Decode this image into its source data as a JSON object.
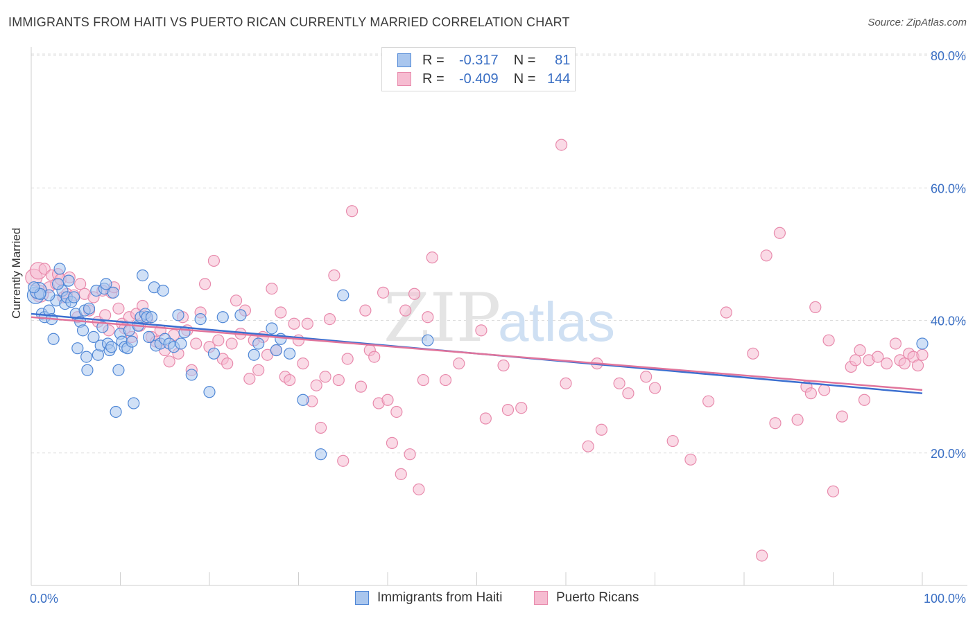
{
  "title": "IMMIGRANTS FROM HAITI VS PUERTO RICAN CURRENTLY MARRIED CORRELATION CHART",
  "source": "Source: ZipAtlas.com",
  "legend": {
    "rows": [
      {
        "r_label": "R =",
        "r_value": "-0.317",
        "n_label": "N =",
        "n_value": "81"
      },
      {
        "r_label": "R =",
        "r_value": "-0.409",
        "n_label": "N =",
        "n_value": "144"
      }
    ]
  },
  "bottom_legend": {
    "haiti": "Immigrants from Haiti",
    "pr": "Puerto Ricans"
  },
  "colors": {
    "haiti_fill": "#a9c6ee",
    "haiti_stroke": "#4f87d6",
    "haiti_line": "#3b6fd0",
    "pr_fill": "#f6bcd1",
    "pr_stroke": "#e88aac",
    "pr_line": "#e0749b",
    "tick_label": "#3a6fc4",
    "grid": "#dddddd"
  },
  "chart_data": {
    "type": "scatter",
    "title": "IMMIGRANTS FROM HAITI VS PUERTO RICAN CURRENTLY MARRIED CORRELATION CHART",
    "xlabel": "",
    "ylabel": "Currently Married",
    "xlim": [
      0,
      100
    ],
    "ylim": [
      0,
      80
    ],
    "x_tick_labels": [
      "0.0%",
      "100.0%"
    ],
    "y_tick_labels": [
      "20.0%",
      "40.0%",
      "60.0%",
      "80.0%"
    ],
    "y_ticks": [
      20,
      40,
      60,
      80
    ],
    "grid": true,
    "watermark": "ZIPatlas",
    "series": [
      {
        "name": "Immigrants from Haiti",
        "trend": [
          [
            0,
            41.0
          ],
          [
            100,
            29.0
          ]
        ],
        "points": [
          [
            0.5,
            43.8
          ],
          [
            0.8,
            44.5
          ],
          [
            1.2,
            41.0
          ],
          [
            1.5,
            40.5
          ],
          [
            2.0,
            41.5
          ],
          [
            2.3,
            40.2
          ],
          [
            2.5,
            37.2
          ],
          [
            2.8,
            43.0
          ],
          [
            3.2,
            47.8
          ],
          [
            3.5,
            44.5
          ],
          [
            3.8,
            42.5
          ],
          [
            4.0,
            43.5
          ],
          [
            4.2,
            46.0
          ],
          [
            4.5,
            42.8
          ],
          [
            4.8,
            43.5
          ],
          [
            5.0,
            41.0
          ],
          [
            5.2,
            35.8
          ],
          [
            5.5,
            39.8
          ],
          [
            5.8,
            38.5
          ],
          [
            6.0,
            41.5
          ],
          [
            6.2,
            34.5
          ],
          [
            6.3,
            32.5
          ],
          [
            6.5,
            41.8
          ],
          [
            7.0,
            37.5
          ],
          [
            7.3,
            44.5
          ],
          [
            7.5,
            34.8
          ],
          [
            7.8,
            36.2
          ],
          [
            8.0,
            39.0
          ],
          [
            8.2,
            44.8
          ],
          [
            8.4,
            45.5
          ],
          [
            8.6,
            36.5
          ],
          [
            8.8,
            35.5
          ],
          [
            9.0,
            36.0
          ],
          [
            9.2,
            44.2
          ],
          [
            9.5,
            26.2
          ],
          [
            9.8,
            32.5
          ],
          [
            10.0,
            38.0
          ],
          [
            10.2,
            36.8
          ],
          [
            10.5,
            36.0
          ],
          [
            10.8,
            35.8
          ],
          [
            11.0,
            38.5
          ],
          [
            11.3,
            36.8
          ],
          [
            11.5,
            27.5
          ],
          [
            12.0,
            39.2
          ],
          [
            12.3,
            40.5
          ],
          [
            12.5,
            46.8
          ],
          [
            12.8,
            41.0
          ],
          [
            13.0,
            40.5
          ],
          [
            13.2,
            37.5
          ],
          [
            13.5,
            40.5
          ],
          [
            13.8,
            45.0
          ],
          [
            14.0,
            36.2
          ],
          [
            14.5,
            36.5
          ],
          [
            14.8,
            44.5
          ],
          [
            15.0,
            37.2
          ],
          [
            15.5,
            36.5
          ],
          [
            16.0,
            36.0
          ],
          [
            16.5,
            40.8
          ],
          [
            16.8,
            36.5
          ],
          [
            17.2,
            38.2
          ],
          [
            18.0,
            31.8
          ],
          [
            19.0,
            40.2
          ],
          [
            20.0,
            29.2
          ],
          [
            20.5,
            35.0
          ],
          [
            21.5,
            40.5
          ],
          [
            23.5,
            40.8
          ],
          [
            25.0,
            34.8
          ],
          [
            25.5,
            36.5
          ],
          [
            27.0,
            38.8
          ],
          [
            27.5,
            35.5
          ],
          [
            28.0,
            37.2
          ],
          [
            29.0,
            35.0
          ],
          [
            30.5,
            28.0
          ],
          [
            32.5,
            19.8
          ],
          [
            35.0,
            43.8
          ],
          [
            44.5,
            37.0
          ],
          [
            100.0,
            36.5
          ],
          [
            3.0,
            45.5
          ],
          [
            2.0,
            43.8
          ],
          [
            1.0,
            44.0
          ],
          [
            0.3,
            45.0
          ]
        ]
      },
      {
        "name": "Puerto Ricans",
        "trend": [
          [
            0,
            40.5
          ],
          [
            100,
            29.5
          ]
        ],
        "points": [
          [
            0.3,
            46.5
          ],
          [
            0.8,
            47.5
          ],
          [
            1.0,
            44.0
          ],
          [
            1.5,
            47.8
          ],
          [
            2.0,
            45.0
          ],
          [
            2.3,
            46.8
          ],
          [
            2.8,
            45.5
          ],
          [
            3.0,
            47.0
          ],
          [
            3.3,
            46.2
          ],
          [
            3.6,
            43.5
          ],
          [
            4.0,
            44.0
          ],
          [
            4.3,
            46.5
          ],
          [
            4.8,
            43.8
          ],
          [
            5.2,
            40.5
          ],
          [
            5.5,
            45.5
          ],
          [
            6.0,
            44.0
          ],
          [
            6.5,
            41.5
          ],
          [
            7.0,
            43.5
          ],
          [
            7.5,
            39.8
          ],
          [
            8.0,
            44.5
          ],
          [
            8.3,
            40.8
          ],
          [
            8.7,
            38.5
          ],
          [
            9.0,
            44.2
          ],
          [
            9.3,
            45.0
          ],
          [
            9.8,
            41.8
          ],
          [
            10.2,
            39.5
          ],
          [
            10.5,
            38.8
          ],
          [
            11.0,
            40.5
          ],
          [
            11.3,
            37.5
          ],
          [
            11.8,
            41.0
          ],
          [
            12.2,
            39.2
          ],
          [
            12.5,
            42.2
          ],
          [
            13.0,
            40.2
          ],
          [
            13.5,
            37.5
          ],
          [
            14.0,
            36.8
          ],
          [
            14.5,
            38.5
          ],
          [
            15.0,
            35.5
          ],
          [
            15.5,
            33.8
          ],
          [
            16.0,
            37.8
          ],
          [
            16.5,
            35.0
          ],
          [
            17.0,
            40.5
          ],
          [
            17.5,
            38.5
          ],
          [
            18.0,
            32.5
          ],
          [
            18.5,
            36.5
          ],
          [
            19.0,
            41.2
          ],
          [
            19.5,
            45.5
          ],
          [
            20.0,
            36.0
          ],
          [
            20.5,
            49.0
          ],
          [
            21.0,
            37.0
          ],
          [
            21.5,
            34.2
          ],
          [
            22.0,
            33.5
          ],
          [
            22.5,
            36.5
          ],
          [
            23.0,
            43.0
          ],
          [
            23.5,
            38.0
          ],
          [
            24.0,
            41.5
          ],
          [
            24.5,
            31.2
          ],
          [
            25.0,
            37.0
          ],
          [
            25.5,
            32.5
          ],
          [
            26.0,
            37.5
          ],
          [
            26.5,
            34.8
          ],
          [
            27.0,
            44.8
          ],
          [
            27.5,
            35.5
          ],
          [
            28.0,
            41.2
          ],
          [
            28.5,
            31.5
          ],
          [
            29.0,
            31.0
          ],
          [
            29.5,
            39.5
          ],
          [
            30.0,
            37.0
          ],
          [
            30.5,
            33.5
          ],
          [
            31.0,
            39.5
          ],
          [
            31.5,
            27.8
          ],
          [
            32.0,
            30.2
          ],
          [
            32.5,
            23.8
          ],
          [
            33.0,
            31.5
          ],
          [
            33.5,
            40.2
          ],
          [
            34.0,
            46.8
          ],
          [
            34.5,
            31.0
          ],
          [
            35.0,
            18.8
          ],
          [
            35.5,
            34.2
          ],
          [
            36.0,
            56.5
          ],
          [
            37.0,
            30.0
          ],
          [
            37.5,
            41.5
          ],
          [
            38.0,
            35.5
          ],
          [
            38.5,
            34.5
          ],
          [
            39.0,
            27.5
          ],
          [
            39.5,
            44.2
          ],
          [
            40.0,
            28.0
          ],
          [
            40.5,
            21.5
          ],
          [
            41.0,
            26.2
          ],
          [
            41.5,
            16.8
          ],
          [
            42.0,
            41.5
          ],
          [
            42.5,
            19.8
          ],
          [
            43.0,
            44.0
          ],
          [
            43.5,
            14.5
          ],
          [
            44.0,
            31.0
          ],
          [
            44.5,
            40.5
          ],
          [
            45.0,
            49.5
          ],
          [
            46.5,
            31.0
          ],
          [
            48.0,
            33.5
          ],
          [
            50.5,
            38.5
          ],
          [
            51.0,
            25.2
          ],
          [
            53.0,
            33.2
          ],
          [
            53.5,
            26.5
          ],
          [
            55.0,
            26.8
          ],
          [
            59.5,
            66.5
          ],
          [
            60.0,
            30.5
          ],
          [
            62.5,
            21.0
          ],
          [
            63.5,
            33.5
          ],
          [
            64.0,
            23.5
          ],
          [
            66.0,
            30.5
          ],
          [
            67.0,
            29.0
          ],
          [
            69.0,
            31.5
          ],
          [
            70.0,
            29.8
          ],
          [
            72.0,
            21.8
          ],
          [
            74.0,
            19.0
          ],
          [
            76.0,
            27.8
          ],
          [
            78.0,
            41.2
          ],
          [
            81.0,
            35.0
          ],
          [
            82.0,
            4.5
          ],
          [
            82.5,
            49.8
          ],
          [
            83.5,
            24.5
          ],
          [
            84.0,
            53.2
          ],
          [
            86.0,
            25.0
          ],
          [
            87.0,
            30.0
          ],
          [
            87.5,
            29.0
          ],
          [
            88.0,
            42.0
          ],
          [
            89.0,
            29.5
          ],
          [
            89.5,
            37.0
          ],
          [
            90.0,
            14.2
          ],
          [
            91.0,
            25.5
          ],
          [
            92.0,
            33.0
          ],
          [
            92.5,
            34.0
          ],
          [
            93.0,
            35.5
          ],
          [
            93.5,
            28.0
          ],
          [
            94.0,
            34.0
          ],
          [
            95.0,
            34.5
          ],
          [
            96.0,
            33.5
          ],
          [
            97.0,
            36.5
          ],
          [
            97.5,
            34.0
          ],
          [
            98.0,
            33.5
          ],
          [
            98.5,
            35.0
          ],
          [
            99.0,
            34.5
          ],
          [
            99.5,
            33.2
          ],
          [
            100.0,
            34.8
          ]
        ]
      }
    ]
  }
}
